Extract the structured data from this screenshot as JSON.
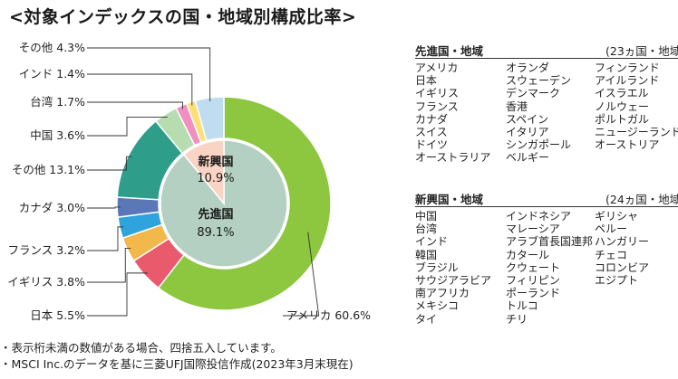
{
  "title": "<対象インデックスの国・地域別構成比率>",
  "chart_data": {
    "type": "pie",
    "title": "<対象インデックスの国・地域別構成比率>",
    "outer": [
      {
        "label": "アメリカ 60.6%",
        "value": 60.6,
        "color": "#8dc63f"
      },
      {
        "label": "日本 5.5%",
        "value": 5.5,
        "color": "#e95a6d"
      },
      {
        "label": "イギリス 3.8%",
        "value": 3.8,
        "color": "#f2b84b"
      },
      {
        "label": "フランス 3.2%",
        "value": 3.2,
        "color": "#2ea3dc"
      },
      {
        "label": "カナダ 3.0%",
        "value": 3.0,
        "color": "#5a78b8"
      },
      {
        "label": "その他 13.1%",
        "value": 13.1,
        "color": "#2e9e8a"
      },
      {
        "label": "中国 3.6%",
        "value": 3.6,
        "color": "#b6dcb0"
      },
      {
        "label": "台湾 1.7%",
        "value": 1.7,
        "color": "#f08fc0"
      },
      {
        "label": "インド 1.4%",
        "value": 1.4,
        "color": "#fbe07a"
      },
      {
        "label": "その他 4.3%",
        "value": 4.3,
        "color": "#c0dcf0"
      }
    ],
    "inner": [
      {
        "name": "先進国",
        "value_label": "89.1%",
        "value": 89.1,
        "color": "#b3d0c2"
      },
      {
        "name": "新興国",
        "value_label": "10.9%",
        "value": 10.9,
        "color": "#f9d4c4"
      }
    ]
  },
  "developed": {
    "heading": "先進国・地域",
    "count": "(23ヵ国・地域)",
    "columns": [
      [
        "アメリカ",
        "日本",
        "イギリス",
        "フランス",
        "カナダ",
        "スイス",
        "ドイツ",
        "オーストラリア"
      ],
      [
        "オランダ",
        "スウェーデン",
        "デンマーク",
        "香港",
        "スペイン",
        "イタリア",
        "シンガポール",
        "ベルギー"
      ],
      [
        "フィンランド",
        "アイルランド",
        "イスラエル",
        "ノルウェー",
        "ポルトガル",
        "ニュージーランド",
        "オーストリア"
      ]
    ]
  },
  "emerging": {
    "heading": "新興国・地域",
    "count": "(24ヵ国・地域)",
    "columns": [
      [
        "中国",
        "台湾",
        "インド",
        "韓国",
        "ブラジル",
        "サウジアラビア",
        "南アフリカ",
        "メキシコ",
        "タイ"
      ],
      [
        "インドネシア",
        "マレーシア",
        "アラブ首長国連邦",
        "カタール",
        "クウェート",
        "フィリピン",
        "ポーランド",
        "トルコ",
        "チリ"
      ],
      [
        "ギリシャ",
        "ペルー",
        "ハンガリー",
        "チェコ",
        "コロンビア",
        "エジプト"
      ]
    ]
  },
  "notes": [
    "・表示桁未満の数値がある場合、四捨五入しています。",
    "・MSCI Inc.のデータを基に三菱UFJ国際投信作成(2023年3月末現在)"
  ]
}
